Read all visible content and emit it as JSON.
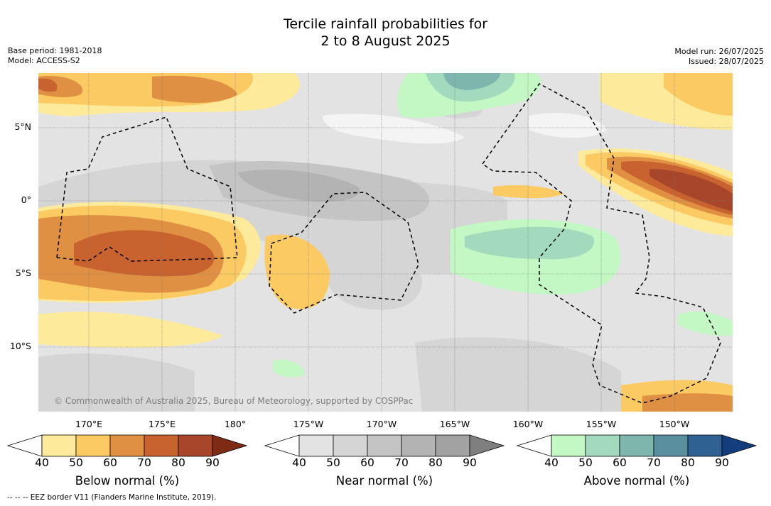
{
  "title_line1": "Tercile rainfall probabilities for",
  "title_line2": "2 to 8 August 2025",
  "meta_left": {
    "base_period": "Base period: 1981-2018",
    "model": "Model: ACCESS-S2"
  },
  "meta_right": {
    "model_run": "Model run: 26/07/2025",
    "issued": "Issued: 28/07/2025"
  },
  "lat_labels": [
    "5°N",
    "0°",
    "5°S",
    "10°S"
  ],
  "lon_labels": [
    "170°E",
    "175°E",
    "180°",
    "175°W",
    "170°W",
    "165°W",
    "160°W",
    "155°W",
    "150°W"
  ],
  "copyright": "© Commonwealth of Australia 2025, Bureau of Meteorology, supported by COSPPac",
  "colorbars": [
    {
      "label": "Below normal (%)",
      "ticks": [
        "40",
        "50",
        "60",
        "70",
        "80",
        "90"
      ],
      "colors": [
        "#ffffff",
        "#fdeb9b",
        "#fcca63",
        "#df9042",
        "#c8622f",
        "#a7462a",
        "#7e2a15"
      ]
    },
    {
      "label": "Near normal (%)",
      "ticks": [
        "40",
        "50",
        "60",
        "70",
        "80",
        "90"
      ],
      "colors": [
        "#ffffff",
        "#e3e3e3",
        "#d5d5d5",
        "#c4c4c4",
        "#b3b3b3",
        "#a2a2a2",
        "#7f7f7f"
      ]
    },
    {
      "label": "Above normal (%)",
      "ticks": [
        "40",
        "50",
        "60",
        "70",
        "80",
        "90"
      ],
      "colors": [
        "#ffffff",
        "#c3f8c4",
        "#a3d9bd",
        "#7eb5ad",
        "#5a8fa0",
        "#2f6293",
        "#143d7d"
      ]
    }
  ],
  "footnote": "--  --  -- EEZ border V11 (Flanders Marine Institute, 2019)."
}
